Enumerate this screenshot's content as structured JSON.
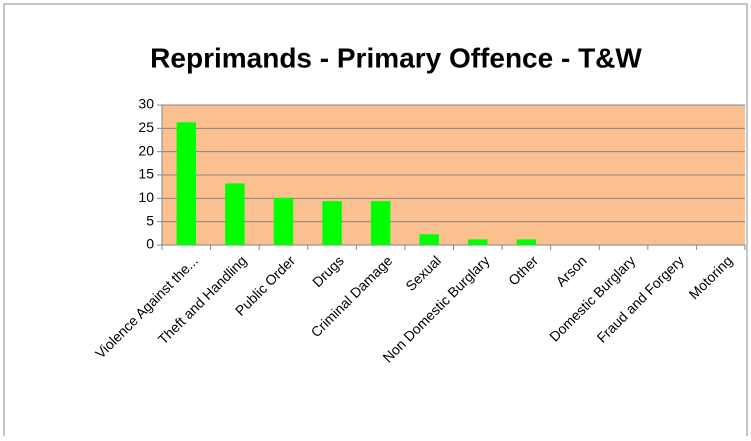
{
  "chart_data": {
    "type": "bar",
    "title": "Reprimands - Primary Offence - T&W",
    "categories": [
      "Violence Against the...",
      "Theft and Handling",
      "Public Order",
      "Drugs",
      "Criminal Damage",
      "Sexual",
      "Non Domestic Burglary",
      "Other",
      "Arson",
      "Domestic Burglary",
      "Fraud and Forgery",
      "Motoring"
    ],
    "values": [
      26.3,
      13.2,
      10.1,
      9.4,
      9.4,
      2.3,
      1.2,
      1.2,
      0,
      0,
      0,
      0
    ],
    "color": "#00ff00",
    "plot_background": "#fac090",
    "ylim": [
      0,
      30
    ],
    "yticks": [
      0,
      5,
      10,
      15,
      20,
      25,
      30
    ],
    "grid": true
  }
}
